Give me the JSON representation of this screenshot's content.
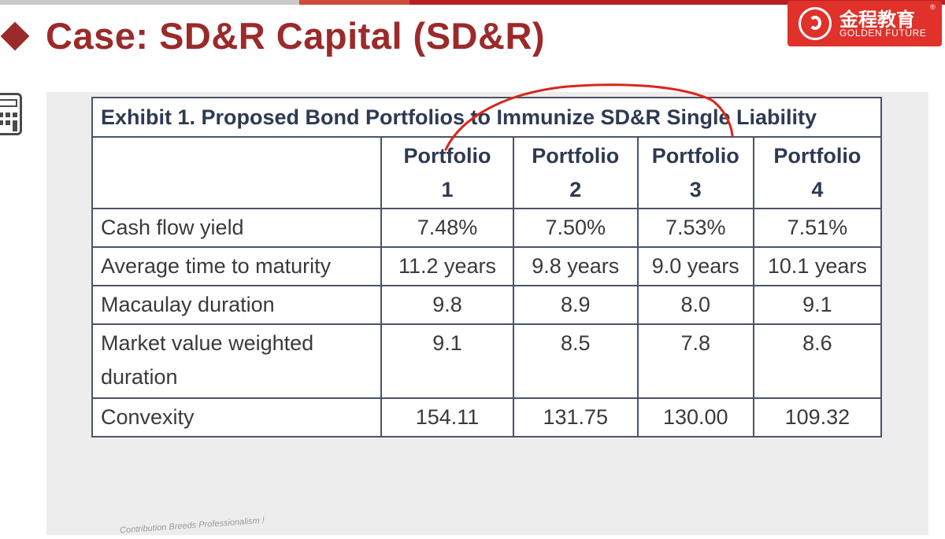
{
  "slide": {
    "title": "Case: SD&R Capital (SD&R)",
    "footer_watermark": "Contribution Breeds Professionalism !"
  },
  "logo": {
    "name_cn": "金程教育",
    "name_en": "GOLDEN FUTURE",
    "registered_mark": "®",
    "color": "#e0312a"
  },
  "icons": {
    "calculator": "calculator-icon"
  },
  "exhibit": {
    "caption": "Exhibit 1. Proposed Bond Portfolios to Immunize SD&R Single Liability",
    "columns": [
      {
        "line1": "Portfolio",
        "line2": "1"
      },
      {
        "line1": "Portfolio",
        "line2": "2"
      },
      {
        "line1": "Portfolio",
        "line2": "3"
      },
      {
        "line1": "Portfolio",
        "line2": "4"
      }
    ],
    "rows": [
      {
        "label": "Cash flow yield",
        "values": [
          "7.48%",
          "7.50%",
          "7.53%",
          "7.51%"
        ]
      },
      {
        "label": "Average time to maturity",
        "values": [
          "11.2 years",
          "9.8 years",
          "9.0 years",
          "10.1 years"
        ]
      },
      {
        "label": "Macaulay duration",
        "values": [
          "9.8",
          "8.9",
          "8.0",
          "9.1"
        ]
      },
      {
        "label_line1": "Market value weighted",
        "label_line2": "duration",
        "values": [
          "9.1",
          "8.5",
          "7.8",
          "8.6"
        ]
      },
      {
        "label": "Convexity",
        "values": [
          "154.11",
          "131.75",
          "130.00",
          "109.32"
        ]
      }
    ]
  },
  "colors": {
    "title": "#9b2a2a",
    "table_header_text": "#2e3a52",
    "annotation_stroke": "#d9261c",
    "panel_background": "#ededed"
  }
}
